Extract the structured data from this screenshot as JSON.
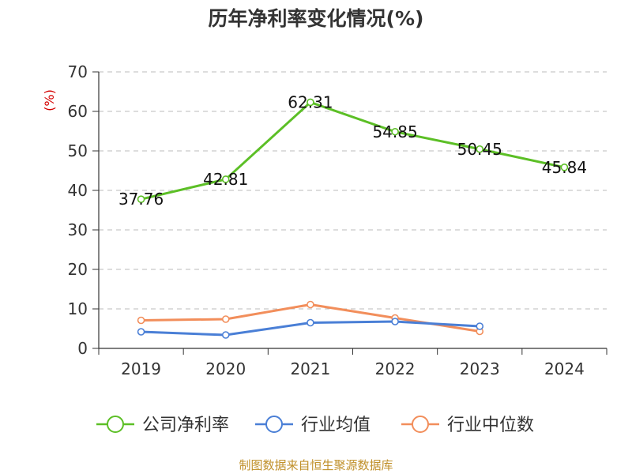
{
  "chart_data": {
    "type": "line",
    "title": "历年净利率变化情况(%)",
    "ylabel": "(%)",
    "xlabel": "",
    "ylim": [
      0,
      70
    ],
    "yticks": [
      0,
      10,
      20,
      30,
      40,
      50,
      60,
      70
    ],
    "grid": true,
    "legend_position": "bottom",
    "categories": [
      "2019",
      "2020",
      "2021",
      "2022",
      "2023",
      "2024"
    ],
    "series": [
      {
        "name": "公司净利率",
        "color": "#5cbf26",
        "values": [
          37.76,
          42.81,
          62.31,
          54.85,
          50.45,
          45.84
        ],
        "labels": [
          "37.76",
          "42.81",
          "62.31",
          "54.85",
          "50.45",
          "45.84"
        ]
      },
      {
        "name": "行业均值",
        "color": "#4a7fd6",
        "values": [
          4.2,
          3.4,
          6.5,
          6.8,
          5.6,
          null
        ]
      },
      {
        "name": "行业中位数",
        "color": "#f28e5b",
        "values": [
          7.1,
          7.4,
          11.1,
          7.7,
          4.3,
          null
        ]
      }
    ]
  },
  "source": "制图数据来自恒生聚源数据库"
}
